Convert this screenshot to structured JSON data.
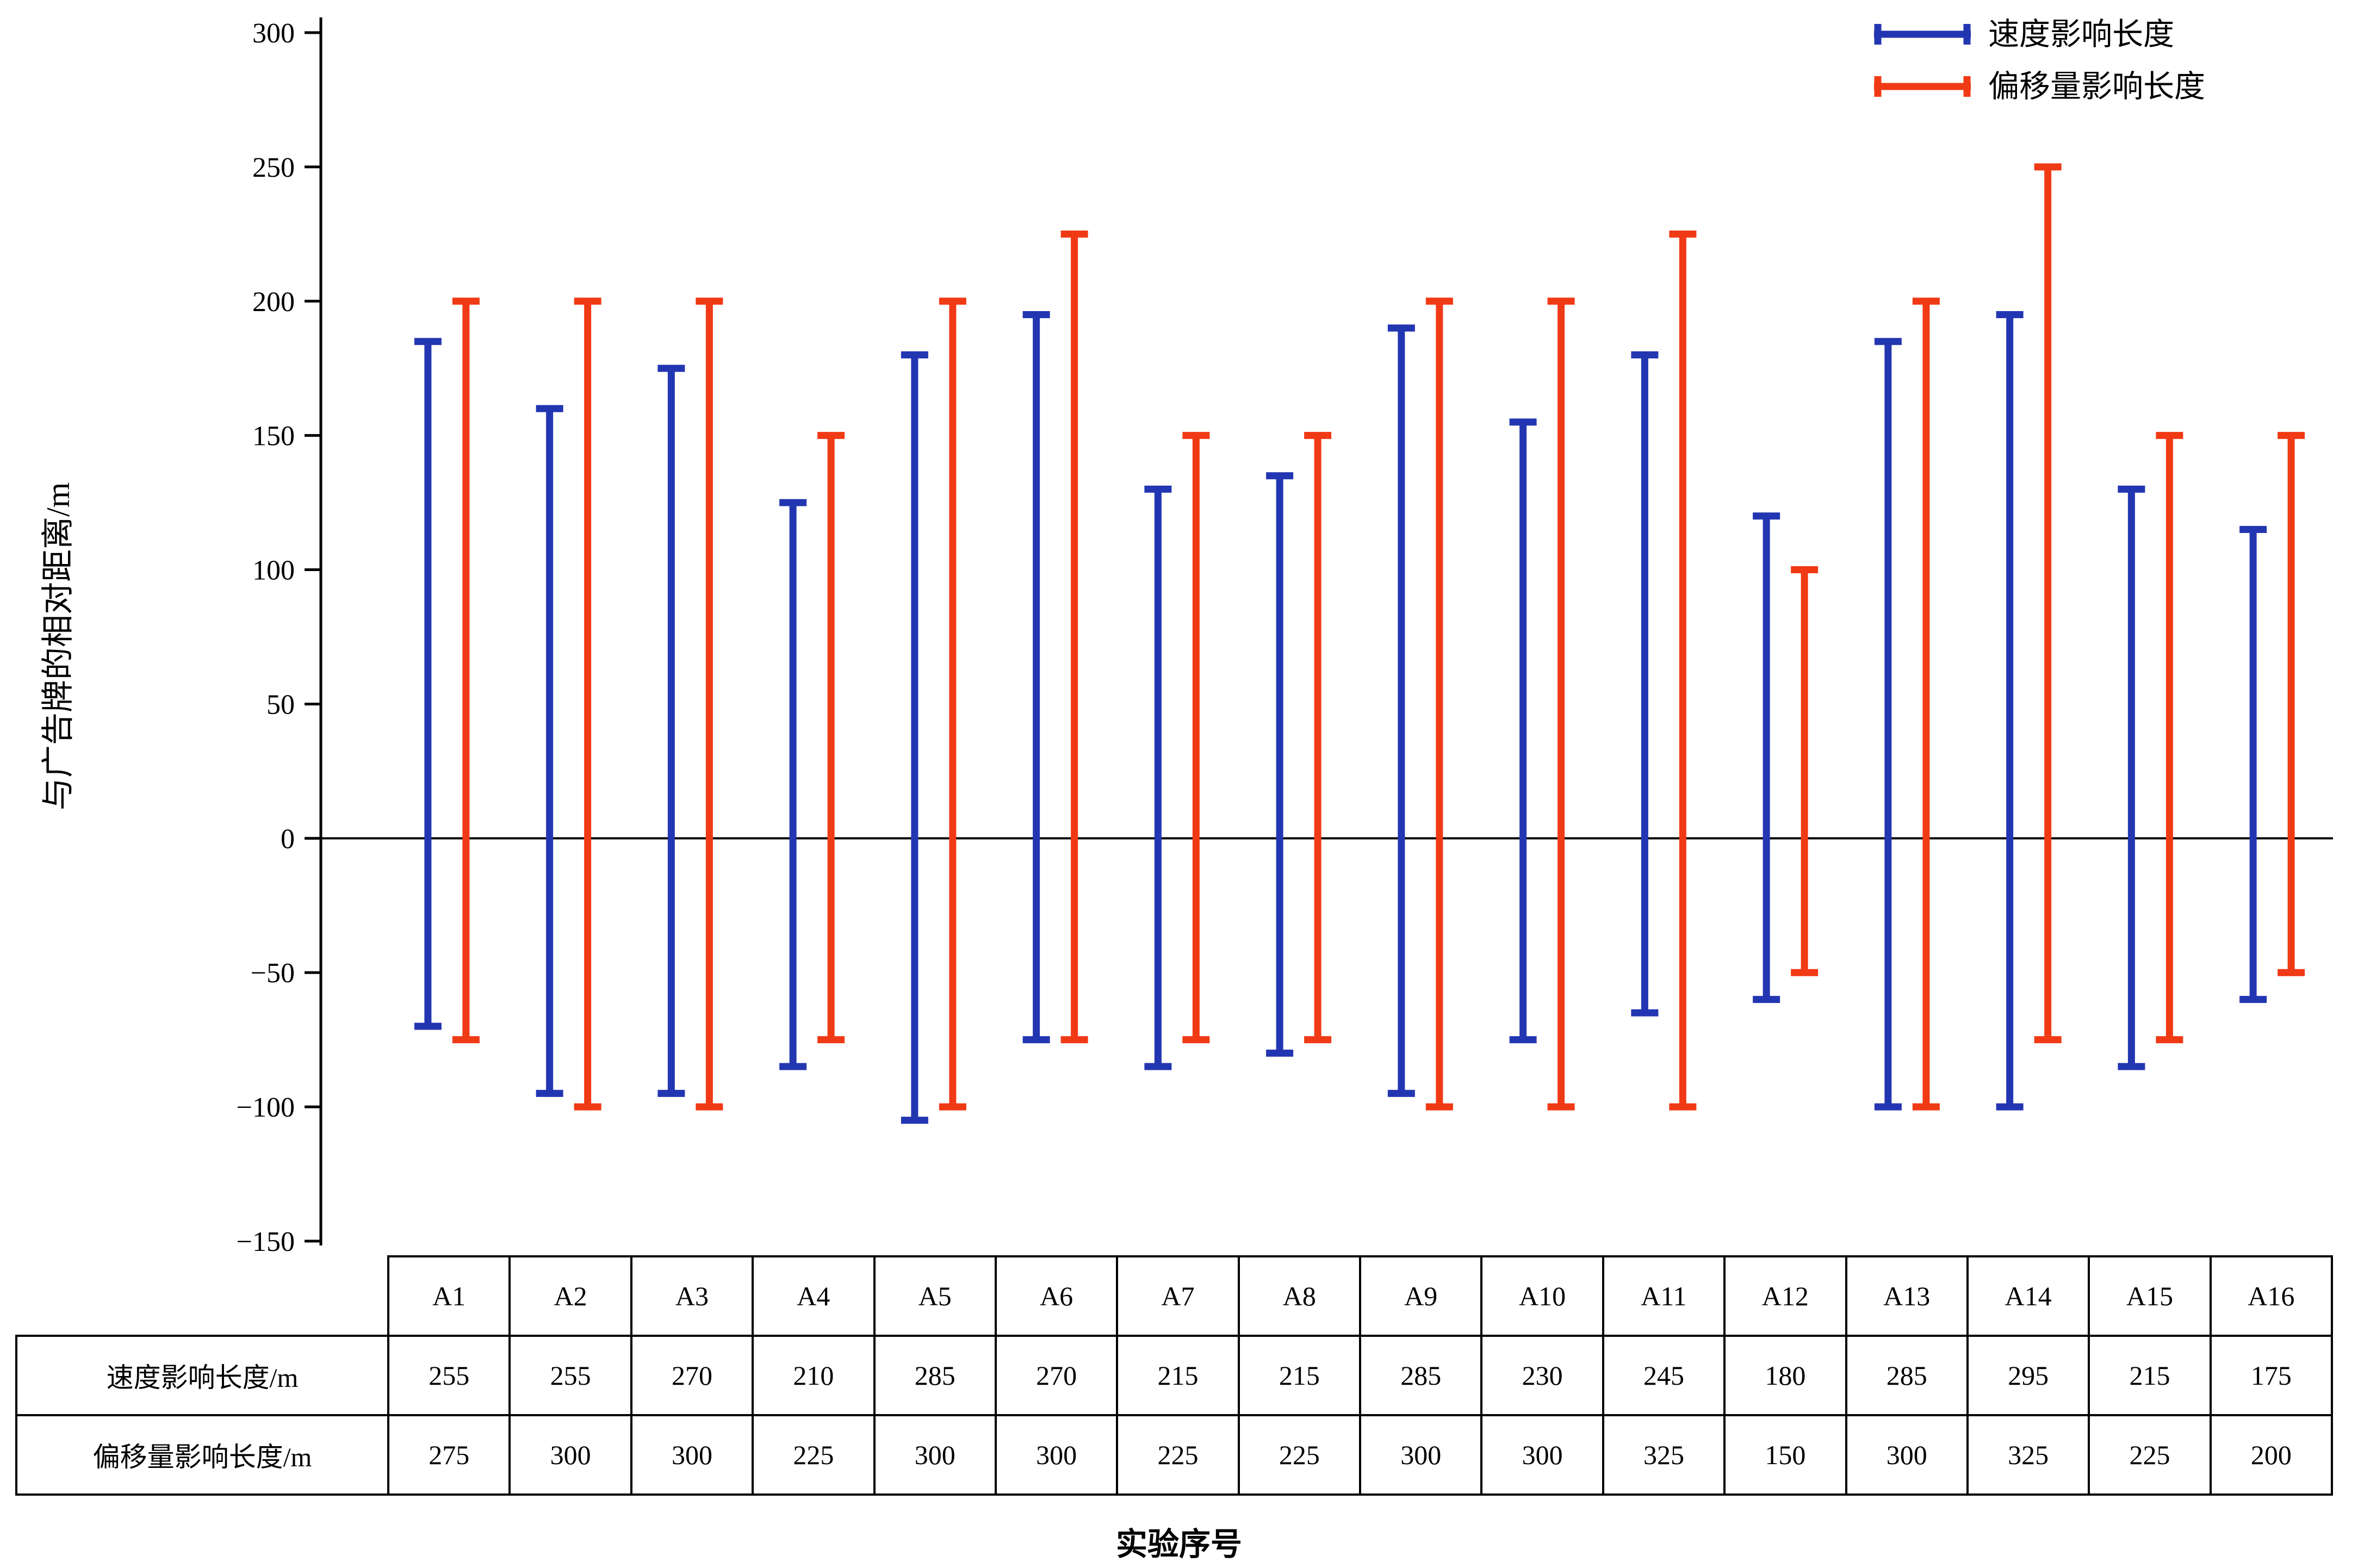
{
  "figure": {
    "ylabel": "与广告牌的相对距离/m",
    "xlabel": "实验序号"
  },
  "chart_data": {
    "type": "bar",
    "subtype": "floating-range-bars",
    "title": "",
    "xlabel": "实验序号",
    "ylabel": "与广告牌的相对距离/m",
    "ylim": [
      -150,
      300
    ],
    "ytick_step": 50,
    "grid": false,
    "legend_position": "top-right",
    "categories": [
      "A1",
      "A2",
      "A3",
      "A4",
      "A5",
      "A6",
      "A7",
      "A8",
      "A9",
      "A10",
      "A11",
      "A12",
      "A13",
      "A14",
      "A15",
      "A16"
    ],
    "series": [
      {
        "name": "速度影响长度",
        "color": "#2336b2",
        "range_top": [
          185,
          160,
          175,
          125,
          180,
          195,
          130,
          135,
          190,
          155,
          180,
          120,
          185,
          195,
          130,
          115
        ],
        "range_bottom": [
          -70,
          -95,
          -95,
          -85,
          -105,
          -75,
          -85,
          -80,
          -95,
          -75,
          -65,
          -60,
          -100,
          -100,
          -85,
          -60
        ],
        "length_m": [
          255,
          255,
          270,
          210,
          285,
          270,
          215,
          215,
          285,
          230,
          245,
          180,
          285,
          295,
          215,
          175
        ]
      },
      {
        "name": "偏移量影响长度",
        "color": "#f03a15",
        "range_top": [
          200,
          200,
          200,
          150,
          200,
          225,
          150,
          150,
          200,
          200,
          225,
          100,
          200,
          250,
          150,
          150
        ],
        "range_bottom": [
          -75,
          -100,
          -100,
          -75,
          -100,
          -75,
          -75,
          -75,
          -100,
          -100,
          -100,
          -50,
          -100,
          -75,
          -75,
          -50
        ],
        "length_m": [
          275,
          300,
          300,
          225,
          300,
          300,
          225,
          225,
          300,
          300,
          325,
          150,
          300,
          325,
          225,
          200
        ]
      }
    ],
    "table": {
      "header": [
        "A1",
        "A2",
        "A3",
        "A4",
        "A5",
        "A6",
        "A7",
        "A8",
        "A9",
        "A10",
        "A11",
        "A12",
        "A13",
        "A14",
        "A15",
        "A16"
      ],
      "rows": [
        {
          "label": "速度影响长度/m",
          "values": [
            "255",
            "255",
            "270",
            "210",
            "285",
            "270",
            "215",
            "215",
            "285",
            "230",
            "245",
            "180",
            "285",
            "295",
            "215",
            "175"
          ]
        },
        {
          "label": "偏移量影响长度/m",
          "values": [
            "275",
            "300",
            "300",
            "225",
            "300",
            "300",
            "225",
            "225",
            "300",
            "300",
            "325",
            "150",
            "300",
            "325",
            "225",
            "200"
          ]
        }
      ]
    }
  }
}
